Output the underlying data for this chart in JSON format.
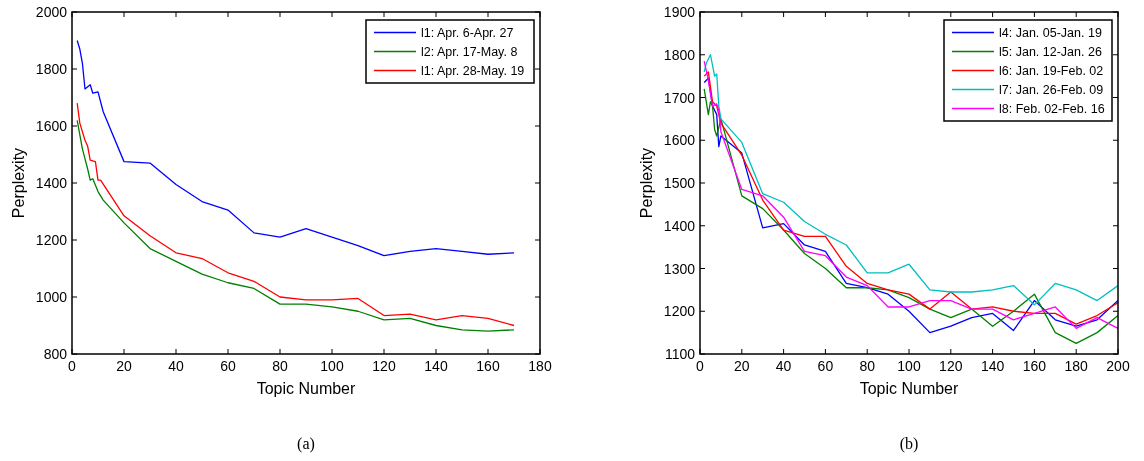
{
  "chart_data": [
    {
      "type": "line",
      "xlabel": "Topic Number",
      "ylabel": "Perplexity",
      "xlim": [
        0,
        180
      ],
      "xticks": [
        0,
        20,
        40,
        60,
        80,
        100,
        120,
        140,
        160,
        180
      ],
      "ylim": [
        800,
        2000
      ],
      "yticks": [
        800,
        1000,
        1200,
        1400,
        1600,
        1800,
        2000
      ],
      "legend": "top right",
      "grid": false,
      "annotations": [
        "(a)"
      ],
      "series": [
        {
          "name": "l1: Apr. 6-Apr. 27",
          "color": "#0000ff",
          "x": [
            2,
            3,
            4,
            5,
            7,
            8,
            10,
            12,
            20,
            30,
            40,
            50,
            60,
            70,
            80,
            90,
            100,
            110,
            120,
            130,
            140,
            150,
            160,
            170
          ],
          "values": [
            1900,
            1870,
            1820,
            1730,
            1745,
            1715,
            1720,
            1650,
            1475,
            1470,
            1395,
            1335,
            1305,
            1225,
            1210,
            1240,
            1210,
            1180,
            1145,
            1160,
            1170,
            1160,
            1150,
            1155
          ]
        },
        {
          "name": "l2: Apr. 17-May. 8",
          "color": "#008000",
          "x": [
            2,
            4,
            6,
            7,
            8,
            10,
            12,
            20,
            30,
            40,
            50,
            60,
            70,
            80,
            90,
            100,
            110,
            120,
            130,
            140,
            150,
            160,
            170
          ],
          "values": [
            1620,
            1520,
            1450,
            1410,
            1415,
            1370,
            1340,
            1260,
            1170,
            1125,
            1080,
            1050,
            1030,
            975,
            975,
            965,
            950,
            920,
            925,
            900,
            885,
            880,
            885
          ]
        },
        {
          "name": "l1: Apr. 28-May. 19",
          "color": "#ff0000",
          "x": [
            2,
            3,
            5,
            6,
            7,
            9,
            10,
            11,
            20,
            30,
            40,
            50,
            60,
            70,
            80,
            90,
            100,
            110,
            120,
            130,
            140,
            150,
            160,
            170
          ],
          "values": [
            1680,
            1610,
            1550,
            1530,
            1480,
            1475,
            1410,
            1410,
            1285,
            1215,
            1155,
            1135,
            1085,
            1055,
            1000,
            990,
            990,
            995,
            935,
            940,
            920,
            935,
            925,
            900
          ]
        }
      ]
    },
    {
      "type": "line",
      "xlabel": "Topic Number",
      "ylabel": "Perplexity",
      "xlim": [
        0,
        200
      ],
      "xticks": [
        0,
        20,
        40,
        60,
        80,
        100,
        120,
        140,
        160,
        180,
        200
      ],
      "ylim": [
        1100,
        1900
      ],
      "yticks": [
        1100,
        1200,
        1300,
        1400,
        1500,
        1600,
        1700,
        1800,
        1900
      ],
      "legend": "top right",
      "grid": false,
      "annotations": [
        "(b)"
      ],
      "series": [
        {
          "name": "l4: Jan. 05-Jan. 19",
          "color": "#0000ff",
          "x": [
            2,
            4,
            6,
            8,
            9,
            10,
            20,
            30,
            40,
            50,
            60,
            70,
            80,
            90,
            100,
            110,
            120,
            130,
            140,
            150,
            160,
            170,
            180,
            190,
            200
          ],
          "values": [
            1735,
            1745,
            1680,
            1660,
            1585,
            1610,
            1570,
            1395,
            1405,
            1355,
            1340,
            1265,
            1255,
            1240,
            1200,
            1150,
            1165,
            1185,
            1195,
            1155,
            1225,
            1180,
            1165,
            1180,
            1225
          ]
        },
        {
          "name": "l5: Jan. 12-Jan. 26",
          "color": "#008000",
          "x": [
            2,
            4,
            5,
            6,
            7,
            8,
            10,
            20,
            30,
            40,
            50,
            60,
            70,
            80,
            90,
            100,
            110,
            120,
            130,
            140,
            150,
            160,
            170,
            180,
            190,
            200
          ],
          "values": [
            1720,
            1660,
            1690,
            1680,
            1625,
            1610,
            1650,
            1470,
            1440,
            1390,
            1335,
            1300,
            1255,
            1255,
            1250,
            1232,
            1205,
            1185,
            1205,
            1165,
            1200,
            1240,
            1150,
            1125,
            1150,
            1190
          ]
        },
        {
          "name": "l6: Jan. 19-Feb. 02",
          "color": "#ff0000",
          "x": [
            2,
            4,
            6,
            8,
            10,
            20,
            30,
            40,
            50,
            60,
            70,
            80,
            90,
            100,
            110,
            120,
            130,
            140,
            150,
            160,
            170,
            180,
            190,
            200
          ],
          "values": [
            1750,
            1760,
            1690,
            1680,
            1640,
            1565,
            1460,
            1390,
            1375,
            1375,
            1305,
            1265,
            1250,
            1240,
            1205,
            1245,
            1205,
            1210,
            1200,
            1195,
            1195,
            1170,
            1190,
            1220
          ]
        },
        {
          "name": "l7: Jan. 26-Feb. 09",
          "color": "#00bfbf",
          "x": [
            2,
            3,
            5,
            7,
            8,
            9,
            10,
            20,
            30,
            40,
            50,
            60,
            70,
            80,
            90,
            100,
            110,
            120,
            130,
            140,
            150,
            160,
            170,
            180,
            190,
            200
          ],
          "values": [
            1760,
            1780,
            1800,
            1750,
            1755,
            1680,
            1650,
            1595,
            1475,
            1455,
            1410,
            1380,
            1355,
            1290,
            1290,
            1310,
            1250,
            1245,
            1245,
            1250,
            1260,
            1215,
            1265,
            1250,
            1225,
            1260
          ]
        },
        {
          "name": "l8: Feb. 02-Feb. 16",
          "color": "#ff00ff",
          "x": [
            2,
            4,
            6,
            8,
            9,
            10,
            20,
            30,
            40,
            50,
            60,
            70,
            80,
            90,
            100,
            110,
            120,
            130,
            140,
            150,
            160,
            170,
            180,
            190,
            200
          ],
          "values": [
            1785,
            1740,
            1680,
            1685,
            1670,
            1620,
            1485,
            1470,
            1420,
            1340,
            1330,
            1280,
            1260,
            1210,
            1210,
            1225,
            1225,
            1205,
            1205,
            1180,
            1195,
            1210,
            1160,
            1185,
            1160
          ]
        }
      ]
    }
  ]
}
